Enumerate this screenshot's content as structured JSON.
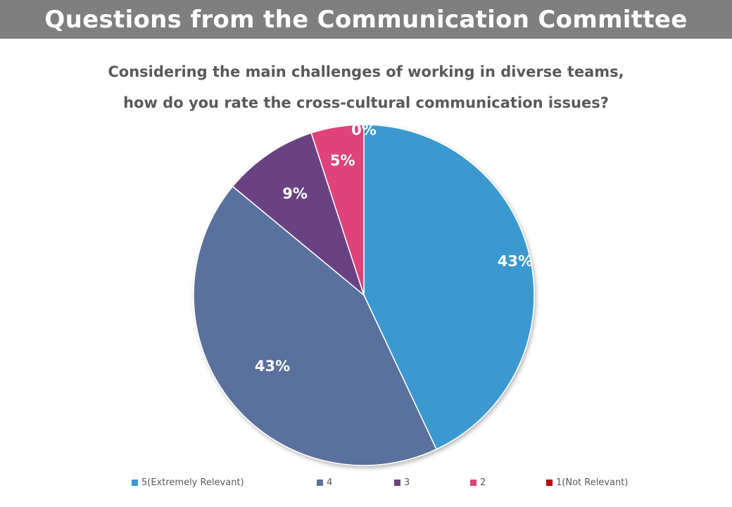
{
  "header": {
    "title": "Questions from the Communication Committee"
  },
  "chart_data": {
    "type": "pie",
    "title_lines": [
      "Considering the main challenges of working in diverse teams,",
      "how do you rate the cross-cultural communication issues?"
    ],
    "categories": [
      "5(Extremely Relevant)",
      "4",
      "3",
      "2",
      "1(Not Relevant)"
    ],
    "values": [
      43,
      43,
      9,
      5,
      0
    ],
    "labels": [
      "43%",
      "43%",
      "9%",
      "5%",
      "0%"
    ],
    "colors": [
      "#3b99d0",
      "#5a719e",
      "#6b4381",
      "#e0437a",
      "#c00000"
    ],
    "legend_position": "bottom"
  }
}
